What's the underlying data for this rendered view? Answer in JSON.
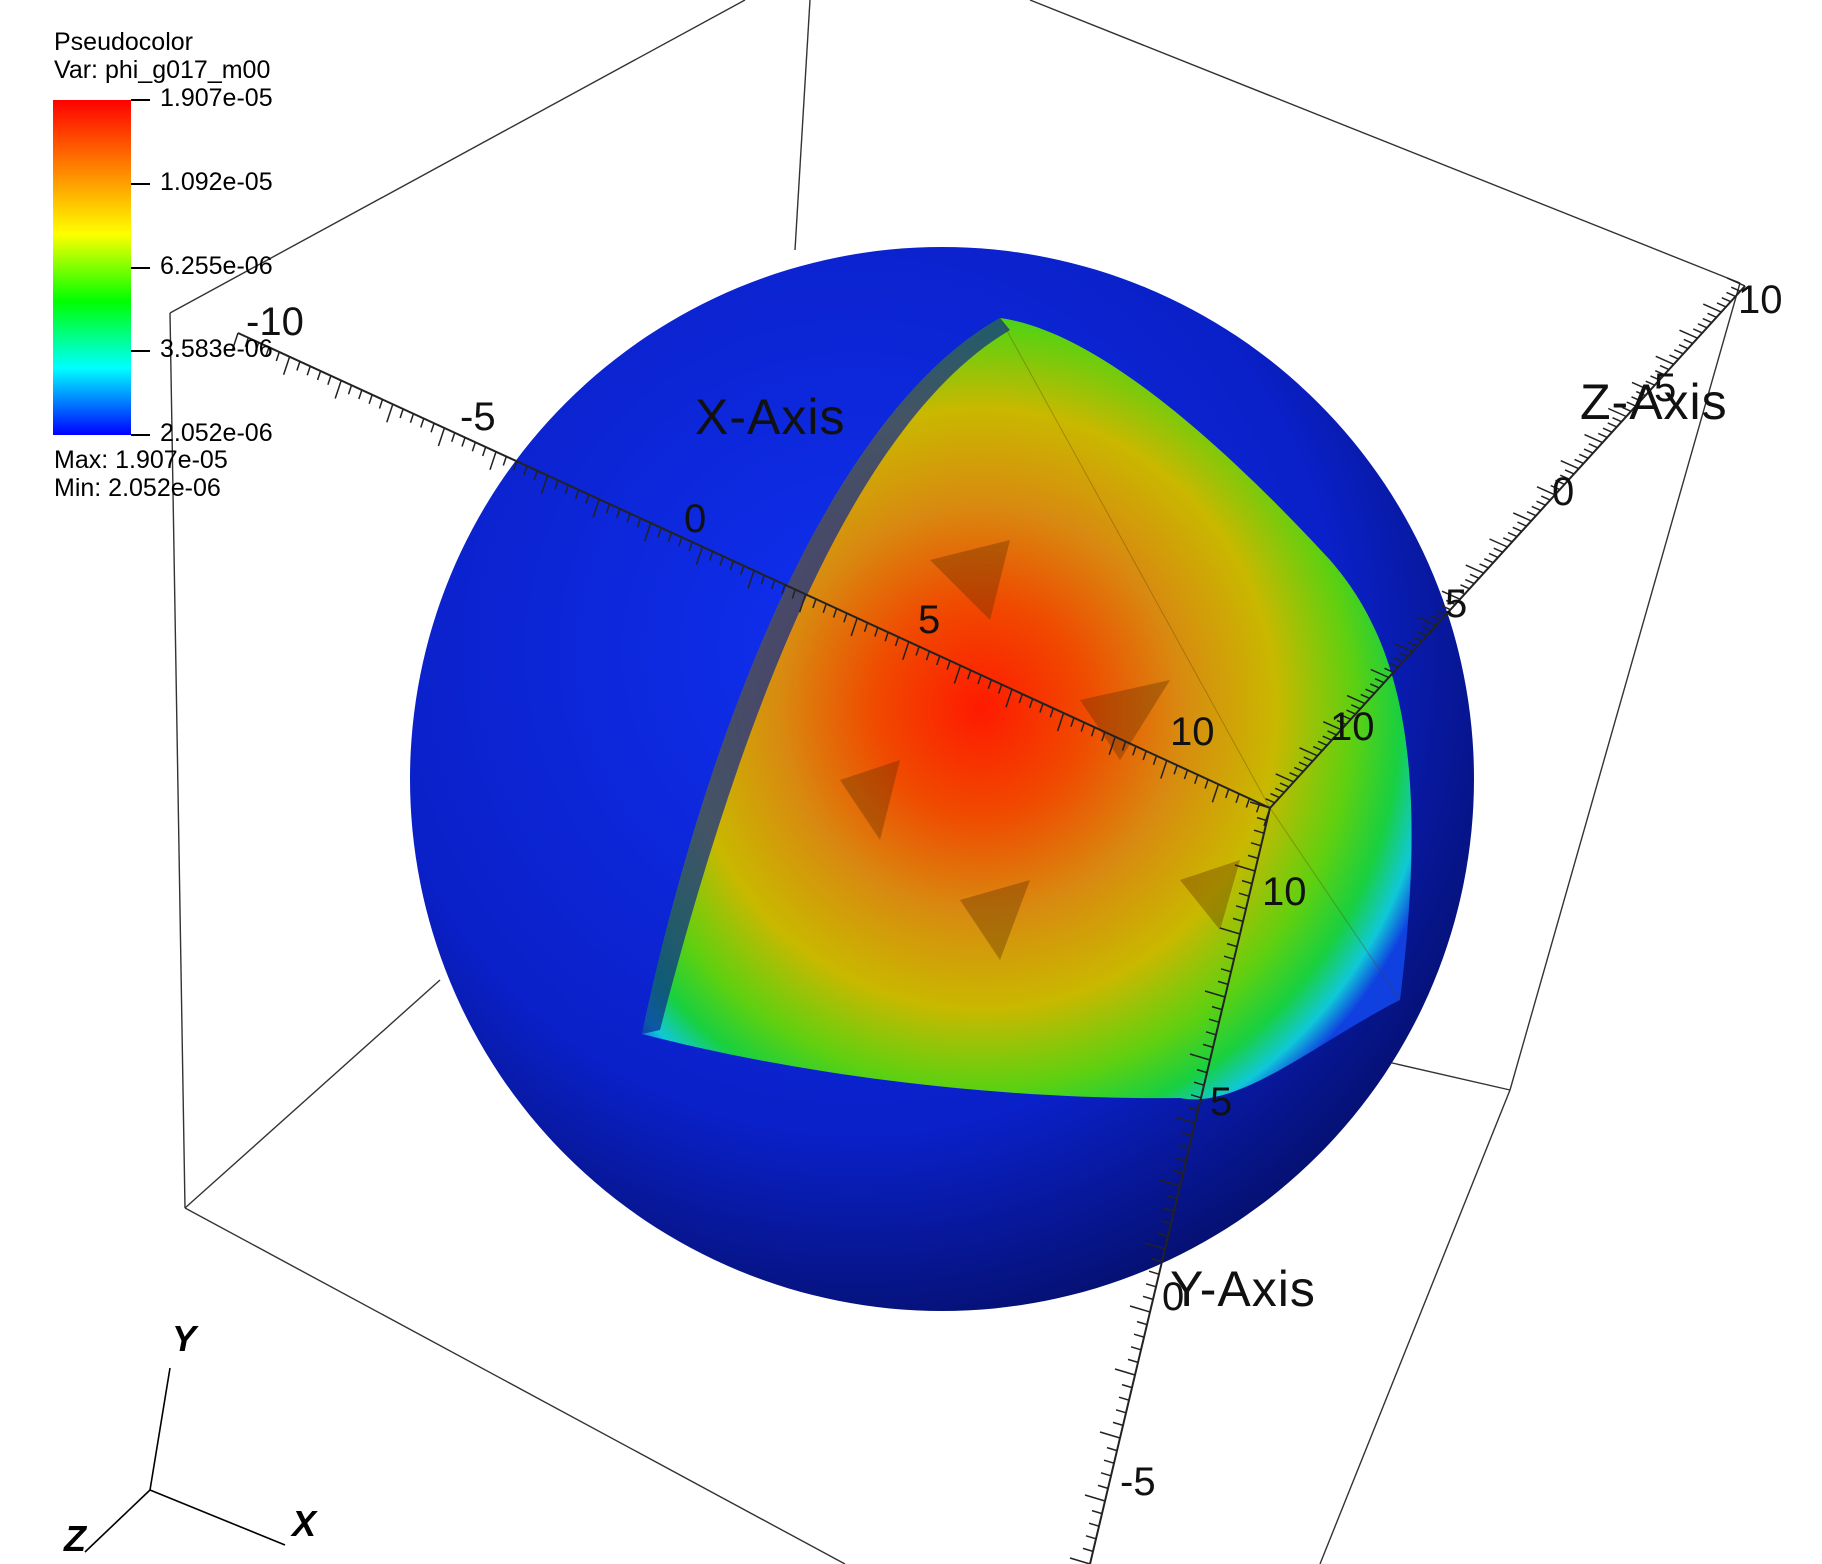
{
  "legend": {
    "plot_type": "Pseudocolor",
    "variable": "Var: phi_g017_m00",
    "ticks": [
      "1.907e-05",
      "1.092e-05",
      "6.255e-06",
      "3.583e-06",
      "2.052e-06"
    ],
    "max_text": "Max:  1.907e-05",
    "min_text": "Min:  2.052e-06",
    "colormap": [
      "#ff0000",
      "#ff8000",
      "#ffff00",
      "#00ff00",
      "#00ffff",
      "#0000ff"
    ]
  },
  "axes": {
    "x_title": "X-Axis",
    "y_title": "Y-Axis",
    "z_title": "Z-Axis",
    "x_labels": [
      "-10",
      "-5",
      "0",
      "5",
      "10"
    ],
    "y_labels": [
      "10",
      "5",
      "0",
      "-5"
    ],
    "z_labels": [
      "10",
      "5",
      "0",
      "5",
      "10"
    ]
  },
  "triad": {
    "x": "X",
    "y": "Y",
    "z": "Z"
  },
  "colors": {
    "shell": "#0a1fd0",
    "shell_dark": "#061370",
    "core": "#ff2a00",
    "mid": "#e8b400",
    "ring": "#19d42a"
  }
}
